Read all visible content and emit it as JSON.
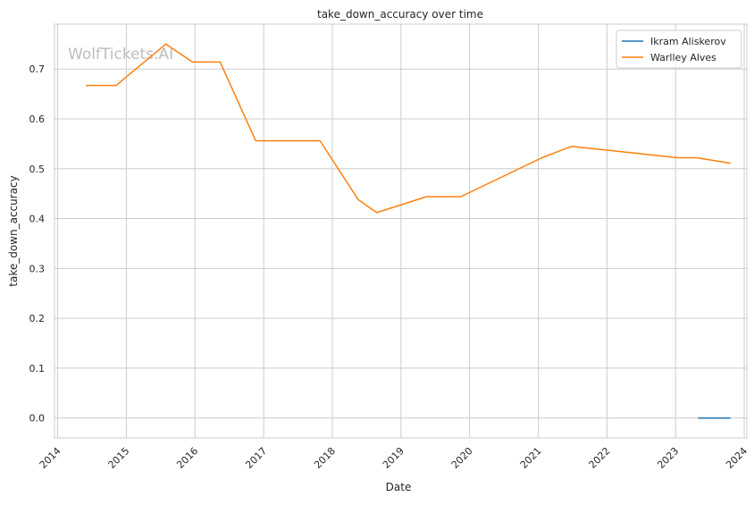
{
  "chart_data": {
    "type": "line",
    "title": "take_down_accuracy over time",
    "xlabel": "Date",
    "ylabel": "take_down_accuracy",
    "x_ticks": [
      "2014",
      "2015",
      "2016",
      "2017",
      "2018",
      "2019",
      "2020",
      "2021",
      "2022",
      "2023",
      "2024"
    ],
    "y_ticks": [
      "0.0",
      "0.1",
      "0.2",
      "0.3",
      "0.4",
      "0.5",
      "0.6",
      "0.7"
    ],
    "xlim": [
      "2013-12-15",
      "2024-01-15"
    ],
    "ylim": [
      -0.04,
      0.79
    ],
    "grid": true,
    "legend_position": "top-right",
    "watermark": "WolfTickets.AI",
    "series": [
      {
        "name": "Ikram Aliskerov",
        "color": "#1f77b4",
        "points": [
          {
            "x": "2023-05-01",
            "y": 0.0
          },
          {
            "x": "2023-10-20",
            "y": 0.0
          }
        ]
      },
      {
        "name": "Warlley Alves",
        "color": "#ff7f0e",
        "points": [
          {
            "x": "2014-05-31",
            "y": 0.667
          },
          {
            "x": "2014-11-08",
            "y": 0.667
          },
          {
            "x": "2015-07-30",
            "y": 0.75
          },
          {
            "x": "2015-12-19",
            "y": 0.714
          },
          {
            "x": "2016-05-14",
            "y": 0.714
          },
          {
            "x": "2016-11-19",
            "y": 0.556
          },
          {
            "x": "2017-10-28",
            "y": 0.556
          },
          {
            "x": "2018-05-19",
            "y": 0.438
          },
          {
            "x": "2018-08-25",
            "y": 0.412
          },
          {
            "x": "2019-05-18",
            "y": 0.444
          },
          {
            "x": "2019-11-16",
            "y": 0.444
          },
          {
            "x": "2021-01-20",
            "y": 0.522
          },
          {
            "x": "2021-06-26",
            "y": 0.545
          },
          {
            "x": "2023-01-14",
            "y": 0.522
          },
          {
            "x": "2023-04-22",
            "y": 0.522
          },
          {
            "x": "2023-10-21",
            "y": 0.511
          }
        ]
      }
    ]
  }
}
